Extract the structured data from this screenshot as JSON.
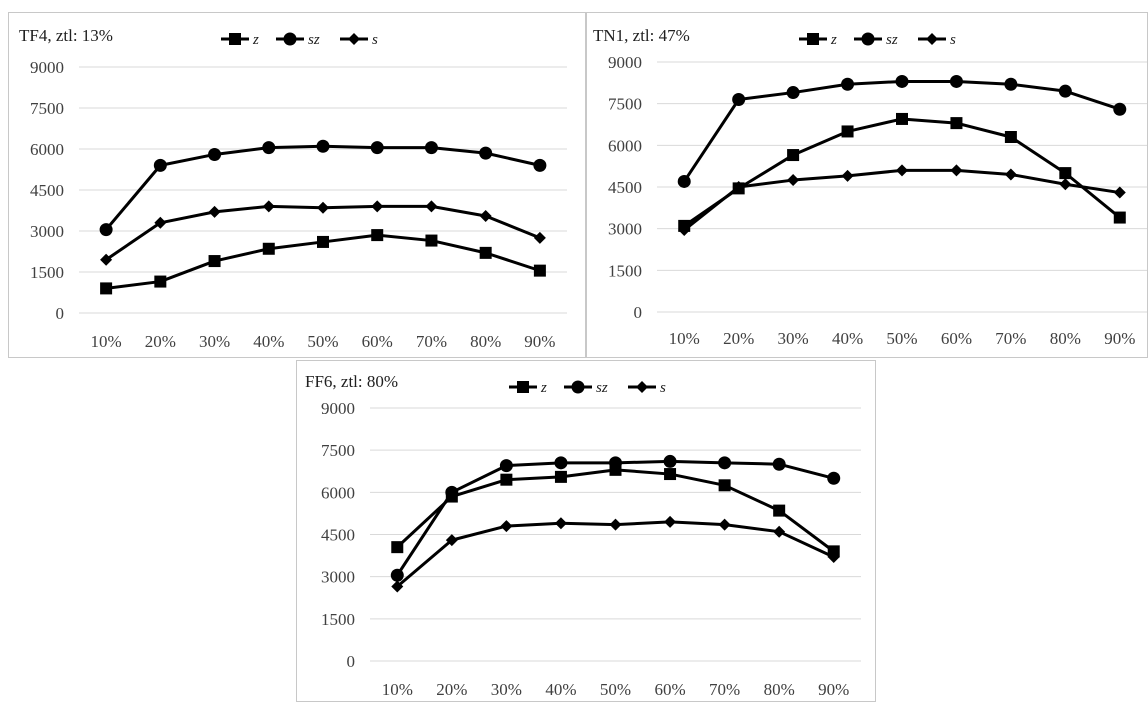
{
  "chart_data": [
    {
      "type": "line",
      "title": "TF4, ztl:  13%",
      "categories": [
        "10%",
        "20%",
        "30%",
        "40%",
        "50%",
        "60%",
        "70%",
        "80%",
        "90%"
      ],
      "yticks": [
        "0",
        "1500",
        "3000",
        "4500",
        "6000",
        "7500",
        "9000"
      ],
      "ylim": [
        0,
        9000
      ],
      "grid": true,
      "legend": "top",
      "series": [
        {
          "name": "z",
          "marker": "square",
          "values": [
            900,
            1150,
            1900,
            2350,
            2600,
            2850,
            2650,
            2200,
            1550
          ]
        },
        {
          "name": "sz",
          "marker": "circle",
          "values": [
            3050,
            5400,
            5800,
            6050,
            6100,
            6050,
            6050,
            5850,
            5400
          ]
        },
        {
          "name": "s",
          "marker": "diamond",
          "values": [
            1950,
            3300,
            3700,
            3900,
            3850,
            3900,
            3900,
            3550,
            2750
          ]
        }
      ]
    },
    {
      "type": "line",
      "title": "TN1, ztl:  47%",
      "categories": [
        "10%",
        "20%",
        "30%",
        "40%",
        "50%",
        "60%",
        "70%",
        "80%",
        "90%"
      ],
      "yticks": [
        "0",
        "1500",
        "3000",
        "4500",
        "6000",
        "7500",
        "9000"
      ],
      "ylim": [
        0,
        9000
      ],
      "grid": true,
      "legend": "top",
      "series": [
        {
          "name": "z",
          "marker": "square",
          "values": [
            3100,
            4450,
            5650,
            6500,
            6950,
            6800,
            6300,
            5000,
            3400
          ]
        },
        {
          "name": "sz",
          "marker": "circle",
          "values": [
            4700,
            7650,
            7900,
            8200,
            8300,
            8300,
            8200,
            7950,
            7300
          ]
        },
        {
          "name": "s",
          "marker": "diamond",
          "values": [
            2950,
            4500,
            4750,
            4900,
            5100,
            5100,
            4950,
            4600,
            4300
          ]
        }
      ]
    },
    {
      "type": "line",
      "title": "FF6, ztl:  80%",
      "categories": [
        "10%",
        "20%",
        "30%",
        "40%",
        "50%",
        "60%",
        "70%",
        "80%",
        "90%"
      ],
      "yticks": [
        "0",
        "1500",
        "3000",
        "4500",
        "6000",
        "7500",
        "9000"
      ],
      "ylim": [
        0,
        9000
      ],
      "grid": true,
      "legend": "top",
      "series": [
        {
          "name": "z",
          "marker": "square",
          "values": [
            4050,
            5850,
            6450,
            6550,
            6800,
            6650,
            6250,
            5350,
            3900
          ]
        },
        {
          "name": "sz",
          "marker": "circle",
          "values": [
            3050,
            6000,
            6950,
            7050,
            7050,
            7100,
            7050,
            7000,
            6500
          ]
        },
        {
          "name": "s",
          "marker": "diamond",
          "values": [
            2650,
            4300,
            4800,
            4900,
            4850,
            4950,
            4850,
            4600,
            3700
          ]
        }
      ]
    }
  ]
}
